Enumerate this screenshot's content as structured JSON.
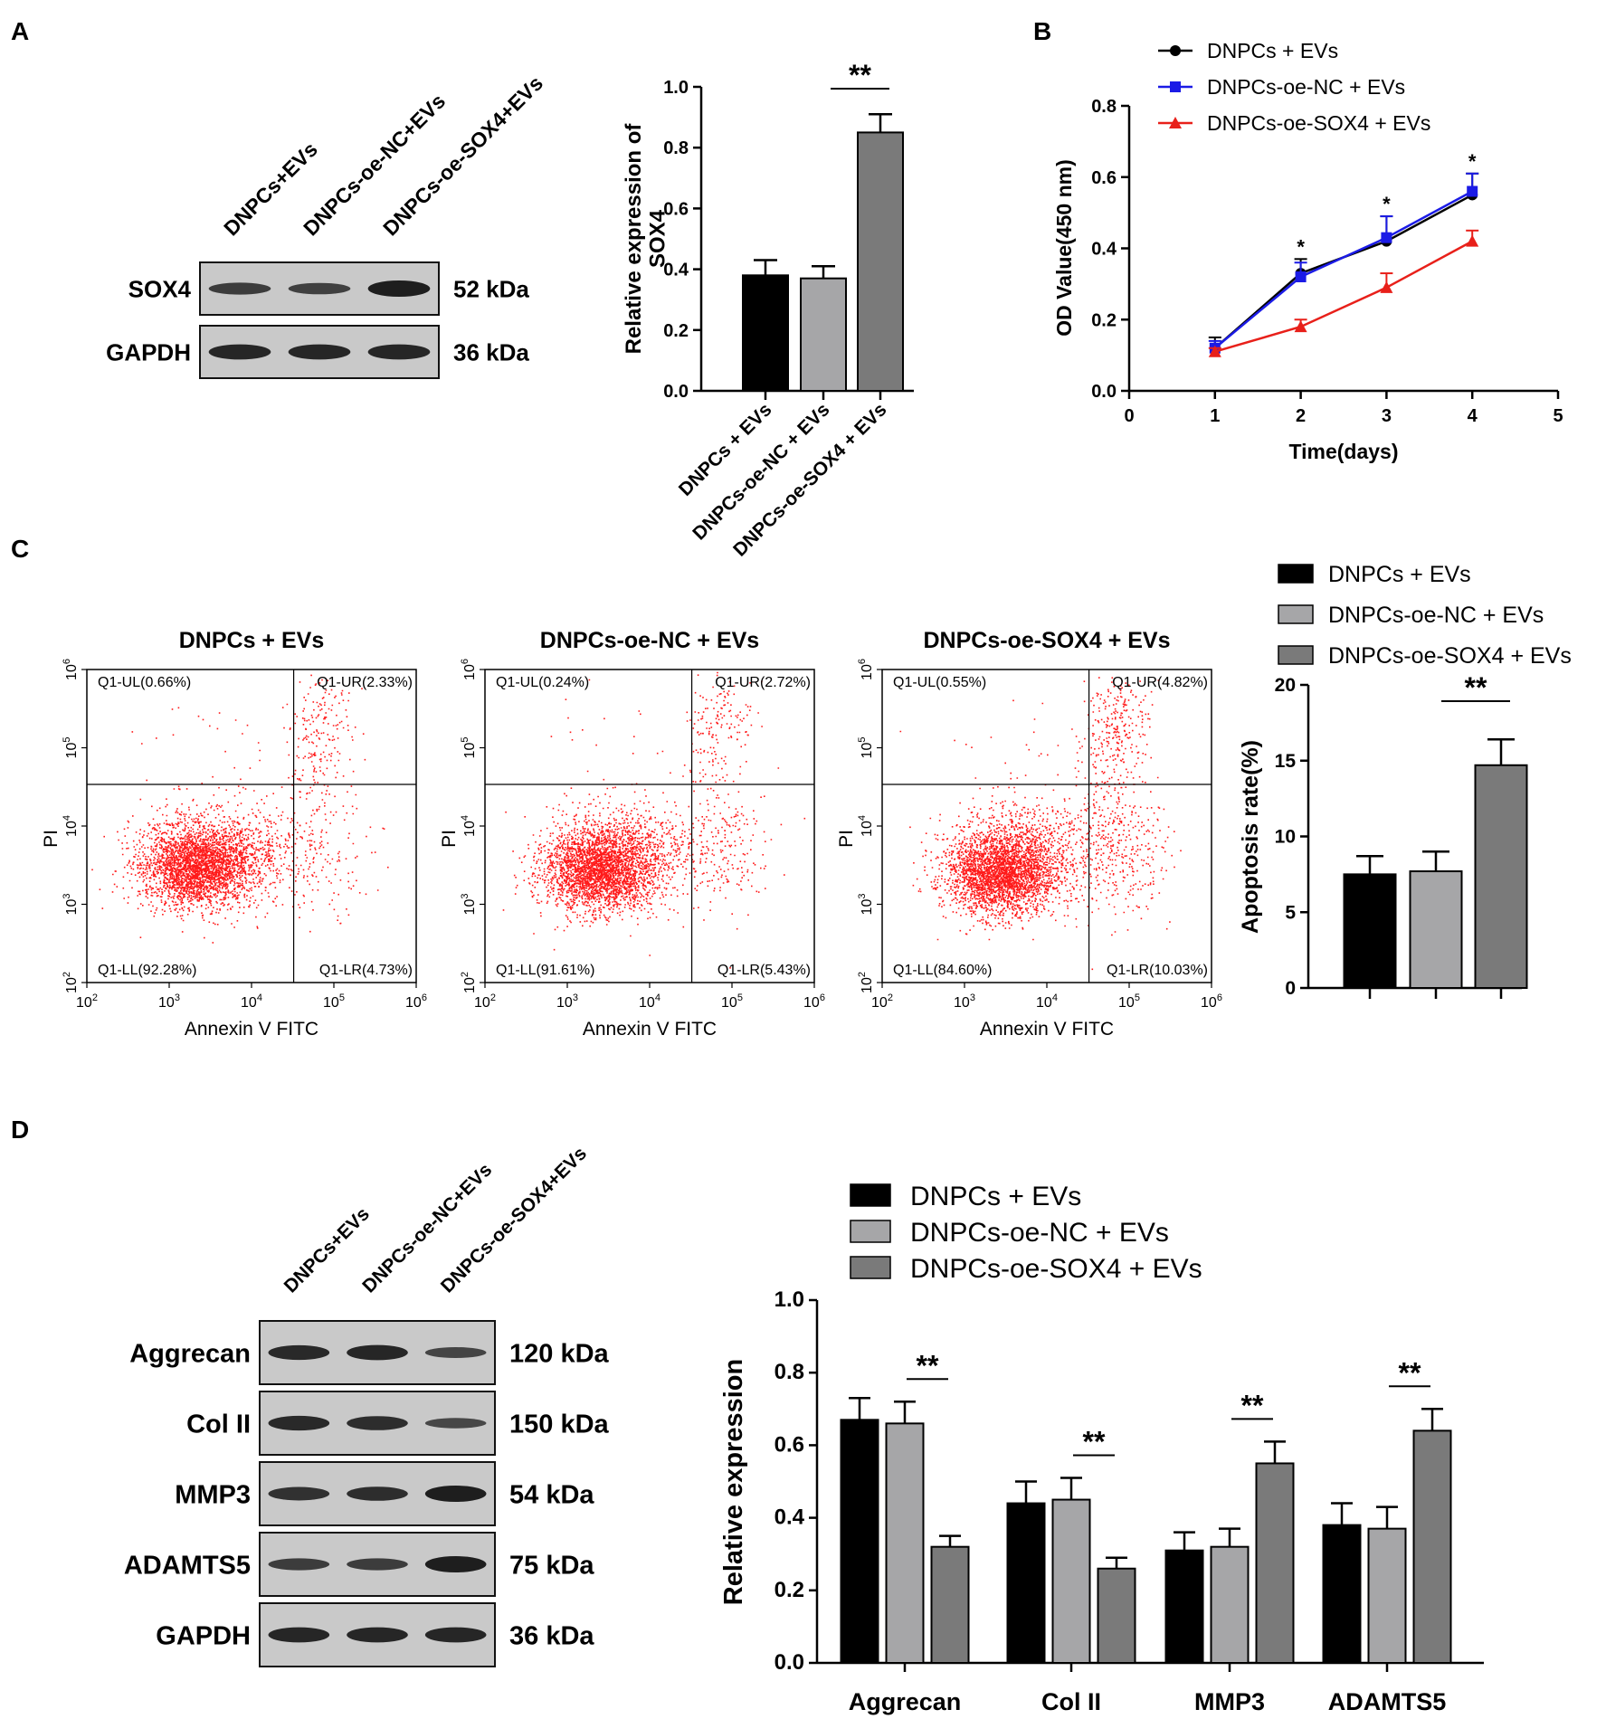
{
  "panels": {
    "A": "A",
    "B": "B",
    "C": "C",
    "D": "D"
  },
  "groups": [
    "DNPCs + EVs",
    "DNPCs-oe-NC + EVs",
    "DNPCs-oe-SOX4 + EVs"
  ],
  "colors": {
    "black": "#000000",
    "light_gray": "#a6a6a8",
    "dark_gray": "#7a7a7a",
    "blue": "#1b1be6",
    "red": "#e8201a",
    "dot_red": "#ff1a1a"
  },
  "blots": {
    "a": {
      "lanes": [
        "DNPCs+EVs",
        "DNPCs-oe-NC+EVs",
        "DNPCs-oe-SOX4+EVs"
      ],
      "rows": [
        {
          "label": "SOX4",
          "kda": "52 kDa",
          "intensity": [
            0.6,
            0.55,
            1.0
          ]
        },
        {
          "label": "GAPDH",
          "kda": "36 kDa",
          "intensity": [
            0.9,
            0.9,
            0.9
          ]
        }
      ]
    },
    "d": {
      "lanes": [
        "DNPCs+EVs",
        "DNPCs-oe-NC+EVs",
        "DNPCs-oe-SOX4+EVs"
      ],
      "rows": [
        {
          "label": "Aggrecan",
          "kda": "120 kDa",
          "intensity": [
            0.85,
            0.9,
            0.5
          ]
        },
        {
          "label": "Col II",
          "kda": "150 kDa",
          "intensity": [
            0.85,
            0.8,
            0.45
          ]
        },
        {
          "label": "MMP3",
          "kda": "54 kDa",
          "intensity": [
            0.75,
            0.8,
            1.0
          ]
        },
        {
          "label": "ADAMTS5",
          "kda": "75 kDa",
          "intensity": [
            0.6,
            0.6,
            1.0
          ]
        },
        {
          "label": "GAPDH",
          "kda": "36 kDa",
          "intensity": [
            0.9,
            0.9,
            0.9
          ]
        }
      ]
    }
  },
  "chart_data": [
    {
      "id": "A-bar",
      "type": "bar",
      "categories": [
        "DNPCs + EVs",
        "DNPCs-oe-NC + EVs",
        "DNPCs-oe-SOX4 + EVs"
      ],
      "values": [
        0.38,
        0.37,
        0.85
      ],
      "errors": [
        0.05,
        0.04,
        0.06
      ],
      "ylabel": "Relative  expression of SOX4",
      "ylim": [
        0,
        1.0
      ],
      "yticks": [
        "0.0",
        "0.2",
        "0.4",
        "0.6",
        "0.8",
        "1.0"
      ],
      "significance": "**"
    },
    {
      "id": "B-line",
      "type": "line",
      "xlabel": "Time(days)",
      "ylabel": "OD Value(450 nm)",
      "xlim": [
        0,
        5
      ],
      "ylim": [
        0,
        0.8
      ],
      "xticks": [
        "0",
        "1",
        "2",
        "3",
        "4",
        "5"
      ],
      "yticks": [
        "0.0",
        "0.2",
        "0.4",
        "0.6",
        "0.8"
      ],
      "series": [
        {
          "name": "DNPCs + EVs",
          "x": [
            1,
            2,
            3,
            4
          ],
          "values": [
            0.12,
            0.33,
            0.42,
            0.55
          ],
          "errors": [
            0.03,
            0.04,
            0.07,
            0.06
          ]
        },
        {
          "name": "DNPCs-oe-NC + EVs",
          "x": [
            1,
            2,
            3,
            4
          ],
          "values": [
            0.12,
            0.32,
            0.43,
            0.56
          ],
          "errors": [
            0.02,
            0.04,
            0.06,
            0.05
          ]
        },
        {
          "name": "DNPCs-oe-SOX4 + EVs",
          "x": [
            1,
            2,
            3,
            4
          ],
          "values": [
            0.11,
            0.18,
            0.29,
            0.42
          ],
          "errors": [
            0.01,
            0.02,
            0.04,
            0.03
          ]
        }
      ],
      "significance_marks": [
        "*",
        "*",
        "*"
      ]
    },
    {
      "id": "C-flow",
      "type": "scatter",
      "xlabel": "Annexin V FITC",
      "ylabel": "PI",
      "tick_base": "10",
      "tick_exponents": [
        "2",
        "3",
        "4",
        "5",
        "6"
      ],
      "plots": [
        {
          "title": "DNPCs + EVs",
          "UL": "Q1-UL(0.66%)",
          "UR": "Q1-UR(2.33%)",
          "LL": "Q1-LL(92.28%)",
          "LR": "Q1-LR(4.73%)"
        },
        {
          "title": "DNPCs-oe-NC + EVs",
          "UL": "Q1-UL(0.24%)",
          "UR": "Q1-UR(2.72%)",
          "LL": "Q1-LL(91.61%)",
          "LR": "Q1-LR(5.43%)"
        },
        {
          "title": "DNPCs-oe-SOX4 + EVs",
          "UL": "Q1-UL(0.55%)",
          "UR": "Q1-UR(4.82%)",
          "LL": "Q1-LL(84.60%)",
          "LR": "Q1-LR(10.03%)"
        }
      ]
    },
    {
      "id": "C-bar",
      "type": "bar",
      "categories": [
        "DNPCs + EVs",
        "DNPCs-oe-NC + EVs",
        "DNPCs-oe-SOX4 + EVs"
      ],
      "values": [
        7.5,
        7.7,
        14.7
      ],
      "errors": [
        1.2,
        1.3,
        1.7
      ],
      "ylabel": "Apoptosis rate(%)",
      "ylim": [
        0,
        20
      ],
      "yticks": [
        "0",
        "5",
        "10",
        "15",
        "20"
      ],
      "significance": "**"
    },
    {
      "id": "D-bar",
      "type": "bar",
      "categories": [
        "Aggrecan",
        "Col II",
        "MMP3",
        "ADAMTS5"
      ],
      "series": [
        {
          "name": "DNPCs + EVs",
          "values": [
            0.67,
            0.44,
            0.31,
            0.38
          ],
          "errors": [
            0.06,
            0.06,
            0.05,
            0.06
          ]
        },
        {
          "name": "DNPCs-oe-NC + EVs",
          "values": [
            0.66,
            0.45,
            0.32,
            0.37
          ],
          "errors": [
            0.06,
            0.06,
            0.05,
            0.06
          ]
        },
        {
          "name": "DNPCs-oe-SOX4 + EVs",
          "values": [
            0.32,
            0.26,
            0.55,
            0.64
          ],
          "errors": [
            0.03,
            0.03,
            0.06,
            0.06
          ]
        }
      ],
      "ylabel": "Relative  expression",
      "ylim": [
        0,
        1.0
      ],
      "yticks": [
        "0.0",
        "0.2",
        "0.4",
        "0.6",
        "0.8",
        "1.0"
      ],
      "significance": "**"
    }
  ]
}
